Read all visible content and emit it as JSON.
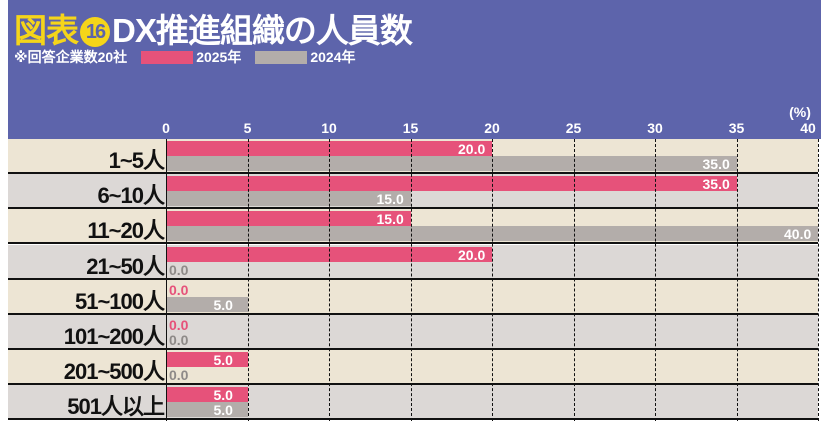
{
  "header": {
    "fig_label": "図表",
    "fig_number": "16",
    "title": "DX推進組織の人員数",
    "note": "※回答企業数20社"
  },
  "colors": {
    "header": "#5d64ab",
    "series2025": "#e6527a",
    "series2024": "#b3adaa",
    "row_odd": "#ede5d4",
    "row_even": "#dcd8d6"
  },
  "chart_data": {
    "type": "bar",
    "orientation": "horizontal",
    "title": "DX推進組織の人員数",
    "unit_label": "(%)",
    "xlim": [
      0,
      40
    ],
    "ticks": [
      0,
      5,
      10,
      15,
      20,
      25,
      30,
      35,
      40
    ],
    "grid": true,
    "legend_position": "top-left",
    "categories": [
      "1~5人",
      "6~10人",
      "11~20人",
      "21~50人",
      "51~100人",
      "101~200人",
      "201~500人",
      "501人以上"
    ],
    "series": [
      {
        "name": "2025年",
        "values": [
          20.0,
          35.0,
          15.0,
          20.0,
          0.0,
          0.0,
          5.0,
          5.0
        ]
      },
      {
        "name": "2024年",
        "values": [
          35.0,
          15.0,
          40.0,
          0.0,
          5.0,
          0.0,
          0.0,
          5.0
        ]
      }
    ]
  }
}
